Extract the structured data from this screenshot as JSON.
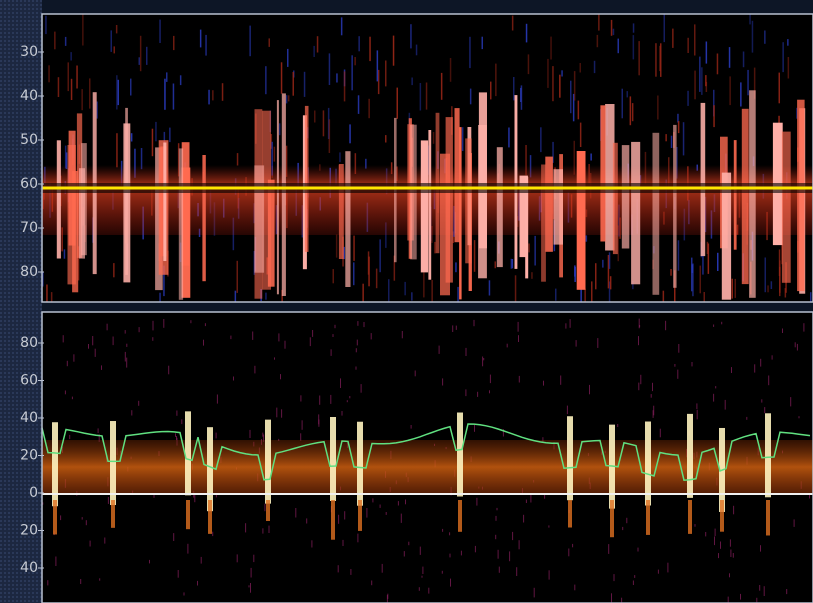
{
  "top_panel": {
    "ticks": [
      "30",
      "40",
      "50",
      "60",
      "70",
      "80"
    ]
  },
  "bottom_panel": {
    "ticks": [
      "80",
      "60",
      "40",
      "20",
      "0",
      "20",
      "40"
    ]
  }
}
